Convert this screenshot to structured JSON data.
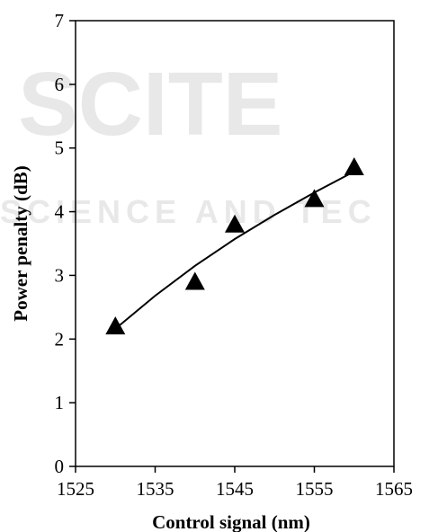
{
  "watermark": {
    "main": "SCITE",
    "sub": "SCIENCE AND TEC"
  },
  "chart_data": {
    "type": "scatter",
    "title": "",
    "xlabel": "Control signal (nm)",
    "ylabel": "Power penalty (dB)",
    "xlim": [
      1525,
      1565
    ],
    "ylim": [
      0,
      7
    ],
    "xticks": [
      1525,
      1535,
      1545,
      1555,
      1565
    ],
    "yticks": [
      0,
      1,
      2,
      3,
      4,
      5,
      6,
      7
    ],
    "grid": false,
    "legend": "none",
    "marker": "triangle",
    "marker_color": "#000000",
    "series": [
      {
        "x": [
          1530,
          1540,
          1545,
          1555,
          1560
        ],
        "y": [
          2.2,
          2.9,
          3.8,
          4.2,
          4.7
        ]
      }
    ],
    "trendline": {
      "x": [
        1530,
        1535,
        1540,
        1545,
        1550,
        1555,
        1560
      ],
      "y": [
        2.16,
        2.68,
        3.15,
        3.57,
        3.95,
        4.3,
        4.63
      ]
    }
  }
}
